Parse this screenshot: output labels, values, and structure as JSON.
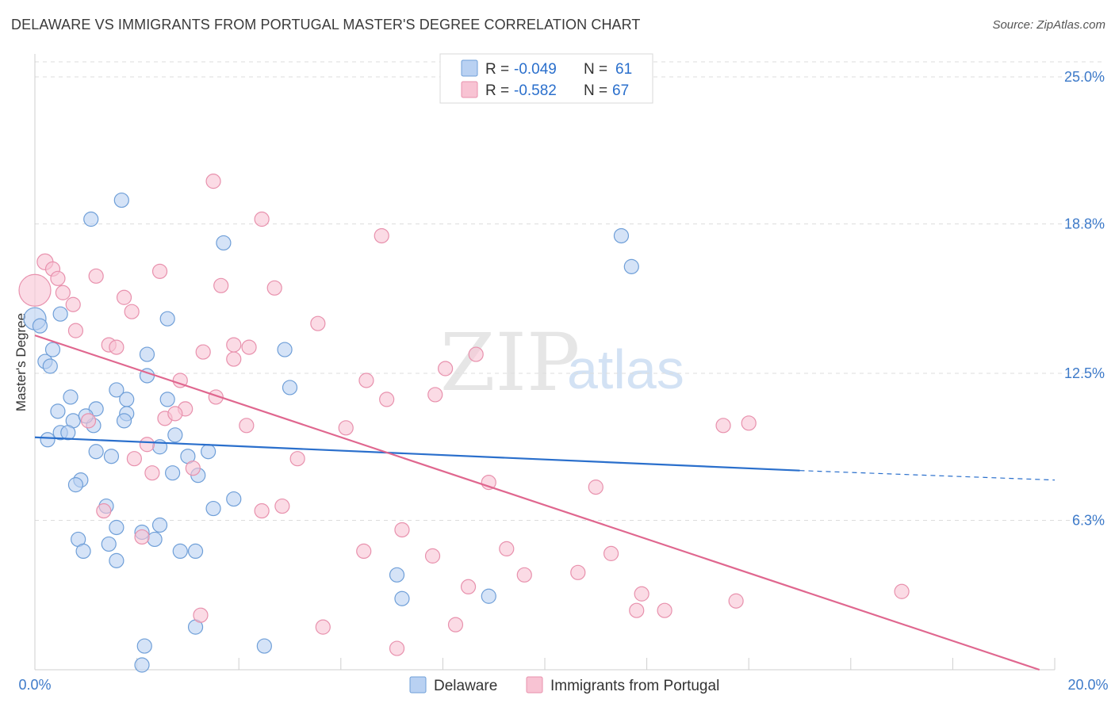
{
  "header": {
    "title": "DELAWARE VS IMMIGRANTS FROM PORTUGAL MASTER'S DEGREE CORRELATION CHART",
    "source": "Source: ZipAtlas.com"
  },
  "watermark": {
    "zip": "ZIP",
    "atlas": "atlas"
  },
  "colors": {
    "blue_fill": "#b9d1f2",
    "blue_stroke": "#6f9fd8",
    "blue_line": "#2a6fcc",
    "pink_fill": "#f8c3d3",
    "pink_stroke": "#e891ad",
    "pink_line": "#e0678f",
    "tick_text": "#3d7ac9",
    "grid": "#dddddd"
  },
  "chart_data": {
    "type": "scatter",
    "title": "DELAWARE VS IMMIGRANTS FROM PORTUGAL MASTER'S DEGREE CORRELATION CHART",
    "xlabel": "",
    "ylabel": "Master's Degree",
    "xlim": [
      0,
      20
    ],
    "ylim": [
      0,
      25
    ],
    "x_tick_labels": [
      "0.0%",
      "20.0%"
    ],
    "y_ticks": [
      {
        "value": 6.3,
        "label": "6.3%"
      },
      {
        "value": 12.5,
        "label": "12.5%"
      },
      {
        "value": 18.8,
        "label": "18.8%"
      },
      {
        "value": 25.0,
        "label": "25.0%"
      }
    ],
    "legend": {
      "r_label": "R =",
      "n_label": "N =",
      "entries": [
        {
          "r": "-0.049",
          "n": "61"
        },
        {
          "r": "-0.582",
          "n": "67"
        }
      ]
    },
    "series": [
      {
        "name": "Delaware",
        "trend": {
          "x0": 0.0,
          "y0": 9.8,
          "x1": 15.0,
          "y1": 8.4,
          "dash_to_x": 20.0,
          "dash_to_y": 8.0
        },
        "points": [
          [
            0.0,
            14.8,
            14
          ],
          [
            0.1,
            14.5,
            9
          ],
          [
            0.2,
            13.0,
            9
          ],
          [
            0.3,
            12.8,
            9
          ],
          [
            0.35,
            13.5,
            9
          ],
          [
            0.5,
            15.0,
            9
          ],
          [
            1.1,
            19.0,
            9
          ],
          [
            1.7,
            19.8,
            9
          ],
          [
            3.7,
            18.0,
            9
          ],
          [
            11.5,
            18.3,
            9
          ],
          [
            11.7,
            17.0,
            9
          ],
          [
            2.6,
            14.8,
            9
          ],
          [
            2.2,
            13.3,
            9
          ],
          [
            4.9,
            13.5,
            9
          ],
          [
            5.0,
            11.9,
            9
          ],
          [
            0.7,
            11.5,
            9
          ],
          [
            1.2,
            11.0,
            9
          ],
          [
            1.6,
            11.8,
            9
          ],
          [
            1.8,
            11.4,
            9
          ],
          [
            2.2,
            12.4,
            9
          ],
          [
            2.6,
            11.4,
            9
          ],
          [
            0.45,
            10.9,
            9
          ],
          [
            0.75,
            10.5,
            9
          ],
          [
            1.15,
            10.3,
            9
          ],
          [
            1.0,
            10.7,
            9
          ],
          [
            0.5,
            10.0,
            9
          ],
          [
            0.65,
            10.0,
            9
          ],
          [
            0.25,
            9.7,
            9
          ],
          [
            1.8,
            10.8,
            9
          ],
          [
            1.75,
            10.5,
            9
          ],
          [
            2.75,
            9.9,
            9
          ],
          [
            1.2,
            9.2,
            9
          ],
          [
            1.5,
            9.0,
            9
          ],
          [
            2.45,
            9.4,
            9
          ],
          [
            3.0,
            9.0,
            9
          ],
          [
            3.4,
            9.2,
            9
          ],
          [
            0.9,
            8.0,
            9
          ],
          [
            0.8,
            7.8,
            9
          ],
          [
            2.7,
            8.3,
            9
          ],
          [
            3.2,
            8.2,
            9
          ],
          [
            1.4,
            6.9,
            9
          ],
          [
            3.5,
            6.8,
            9
          ],
          [
            3.9,
            7.2,
            9
          ],
          [
            1.6,
            6.0,
            9
          ],
          [
            2.45,
            6.1,
            9
          ],
          [
            2.1,
            5.8,
            9
          ],
          [
            0.85,
            5.5,
            9
          ],
          [
            1.45,
            5.3,
            9
          ],
          [
            2.35,
            5.5,
            9
          ],
          [
            0.95,
            5.0,
            9
          ],
          [
            2.85,
            5.0,
            9
          ],
          [
            3.15,
            5.0,
            9
          ],
          [
            1.6,
            4.6,
            9
          ],
          [
            7.1,
            4.0,
            9
          ],
          [
            7.2,
            3.0,
            9
          ],
          [
            8.9,
            3.1,
            9
          ],
          [
            3.15,
            1.8,
            9
          ],
          [
            2.15,
            1.0,
            9
          ],
          [
            4.5,
            1.0,
            9
          ],
          [
            2.1,
            0.2,
            9
          ],
          [
            5.0,
            11.9,
            0
          ]
        ]
      },
      {
        "name": "Immigrants from Portugal",
        "trend": {
          "x0": 0.0,
          "y0": 14.1,
          "x1": 19.7,
          "y1": 0.0
        },
        "points": [
          [
            0.0,
            16.0,
            20
          ],
          [
            0.2,
            17.2,
            10
          ],
          [
            0.35,
            16.9,
            9
          ],
          [
            0.45,
            16.5,
            9
          ],
          [
            0.55,
            15.9,
            9
          ],
          [
            0.75,
            15.4,
            9
          ],
          [
            0.8,
            14.3,
            9
          ],
          [
            1.2,
            16.6,
            9
          ],
          [
            1.75,
            15.7,
            9
          ],
          [
            1.9,
            15.1,
            9
          ],
          [
            2.45,
            16.8,
            9
          ],
          [
            3.5,
            20.6,
            9
          ],
          [
            4.45,
            19.0,
            9
          ],
          [
            6.8,
            18.3,
            9
          ],
          [
            3.65,
            16.2,
            9
          ],
          [
            4.7,
            16.1,
            9
          ],
          [
            5.55,
            14.6,
            9
          ],
          [
            1.45,
            13.7,
            9
          ],
          [
            1.6,
            13.6,
            9
          ],
          [
            3.3,
            13.4,
            9
          ],
          [
            3.9,
            13.7,
            9
          ],
          [
            4.2,
            13.6,
            9
          ],
          [
            3.9,
            13.1,
            9
          ],
          [
            8.65,
            13.3,
            9
          ],
          [
            2.85,
            12.2,
            9
          ],
          [
            6.5,
            12.2,
            9
          ],
          [
            8.05,
            12.7,
            9
          ],
          [
            3.55,
            11.5,
            9
          ],
          [
            6.9,
            11.4,
            9
          ],
          [
            7.85,
            11.6,
            9
          ],
          [
            2.95,
            11.0,
            9
          ],
          [
            2.55,
            10.6,
            9
          ],
          [
            2.75,
            10.8,
            9
          ],
          [
            1.05,
            10.5,
            9
          ],
          [
            4.15,
            10.3,
            9
          ],
          [
            6.1,
            10.2,
            9
          ],
          [
            13.5,
            10.3,
            9
          ],
          [
            14.0,
            10.4,
            9
          ],
          [
            2.2,
            9.5,
            9
          ],
          [
            1.95,
            8.9,
            9
          ],
          [
            5.15,
            8.9,
            9
          ],
          [
            3.1,
            8.5,
            9
          ],
          [
            2.3,
            8.3,
            9
          ],
          [
            8.9,
            7.9,
            9
          ],
          [
            11.0,
            7.7,
            9
          ],
          [
            1.35,
            6.7,
            9
          ],
          [
            4.45,
            6.7,
            9
          ],
          [
            4.85,
            6.9,
            9
          ],
          [
            2.1,
            5.6,
            9
          ],
          [
            7.2,
            5.9,
            9
          ],
          [
            6.45,
            5.0,
            9
          ],
          [
            7.8,
            4.8,
            9
          ],
          [
            9.25,
            5.1,
            9
          ],
          [
            11.3,
            4.9,
            9
          ],
          [
            10.65,
            4.1,
            9
          ],
          [
            9.6,
            4.0,
            9
          ],
          [
            8.5,
            3.5,
            9
          ],
          [
            11.9,
            3.2,
            9
          ],
          [
            17.0,
            3.3,
            9
          ],
          [
            13.75,
            2.9,
            9
          ],
          [
            11.8,
            2.5,
            9
          ],
          [
            12.35,
            2.5,
            9
          ],
          [
            3.25,
            2.3,
            9
          ],
          [
            5.65,
            1.8,
            9
          ],
          [
            8.25,
            1.9,
            9
          ],
          [
            7.1,
            0.9,
            9
          ],
          [
            4.45,
            0.0,
            0
          ]
        ]
      }
    ]
  },
  "bottom_legend": {
    "series1": "Delaware",
    "series2": "Immigrants from Portugal"
  }
}
